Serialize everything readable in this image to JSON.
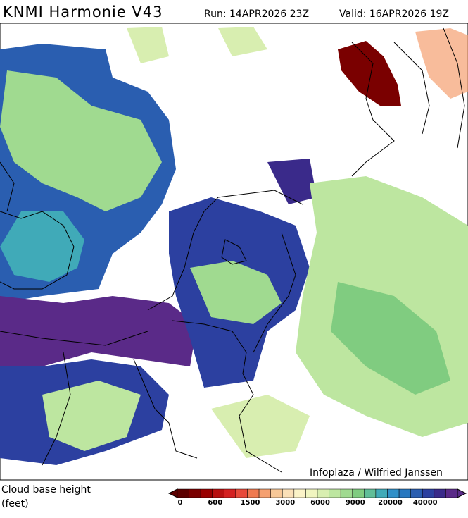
{
  "header": {
    "title": "KNMI Harmonie V43",
    "run": "Run: 14APR2026 23Z",
    "valid": "Valid: 16APR2026 19Z"
  },
  "credit": "Infoplaza / Wilfried Janssen",
  "legend": {
    "title": "Cloud base height",
    "unit": "(feet)",
    "colors": [
      "#5c0000",
      "#7a0000",
      "#990000",
      "#b81010",
      "#d42020",
      "#e84a3a",
      "#f07a50",
      "#f5a070",
      "#f8c898",
      "#fae0b8",
      "#fbf3c8",
      "#f0f5c0",
      "#d8eeb0",
      "#bde6a0",
      "#a0da90",
      "#80cc80",
      "#60be98",
      "#40aab8",
      "#3090c8",
      "#2878c0",
      "#2a5eb0",
      "#2c40a0",
      "#3a2a8a",
      "#5a2a88"
    ],
    "ticks": [
      0,
      600,
      1500,
      3000,
      6000,
      9000,
      20000,
      40000
    ]
  }
}
